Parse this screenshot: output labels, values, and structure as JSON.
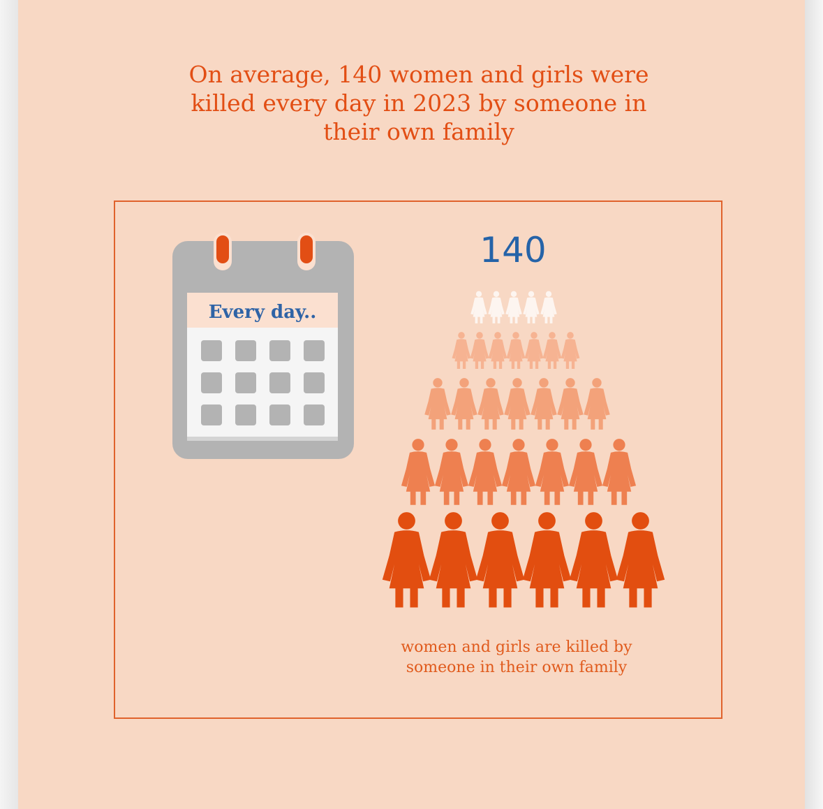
{
  "headline": "On average, 140 women and girls were killed every day in 2023 by someone in their own family",
  "calendar": {
    "caption": "Every day.."
  },
  "count": "140",
  "caption": "women and girls are killed by someone in their own family",
  "colors": {
    "background": "#f8d8c4",
    "accent": "#e24e14",
    "number": "#2563a8",
    "calendar_grey": "#b3b3b3"
  },
  "icons": {
    "calendar": "calendar-icon",
    "person": "woman-figure-icon"
  }
}
